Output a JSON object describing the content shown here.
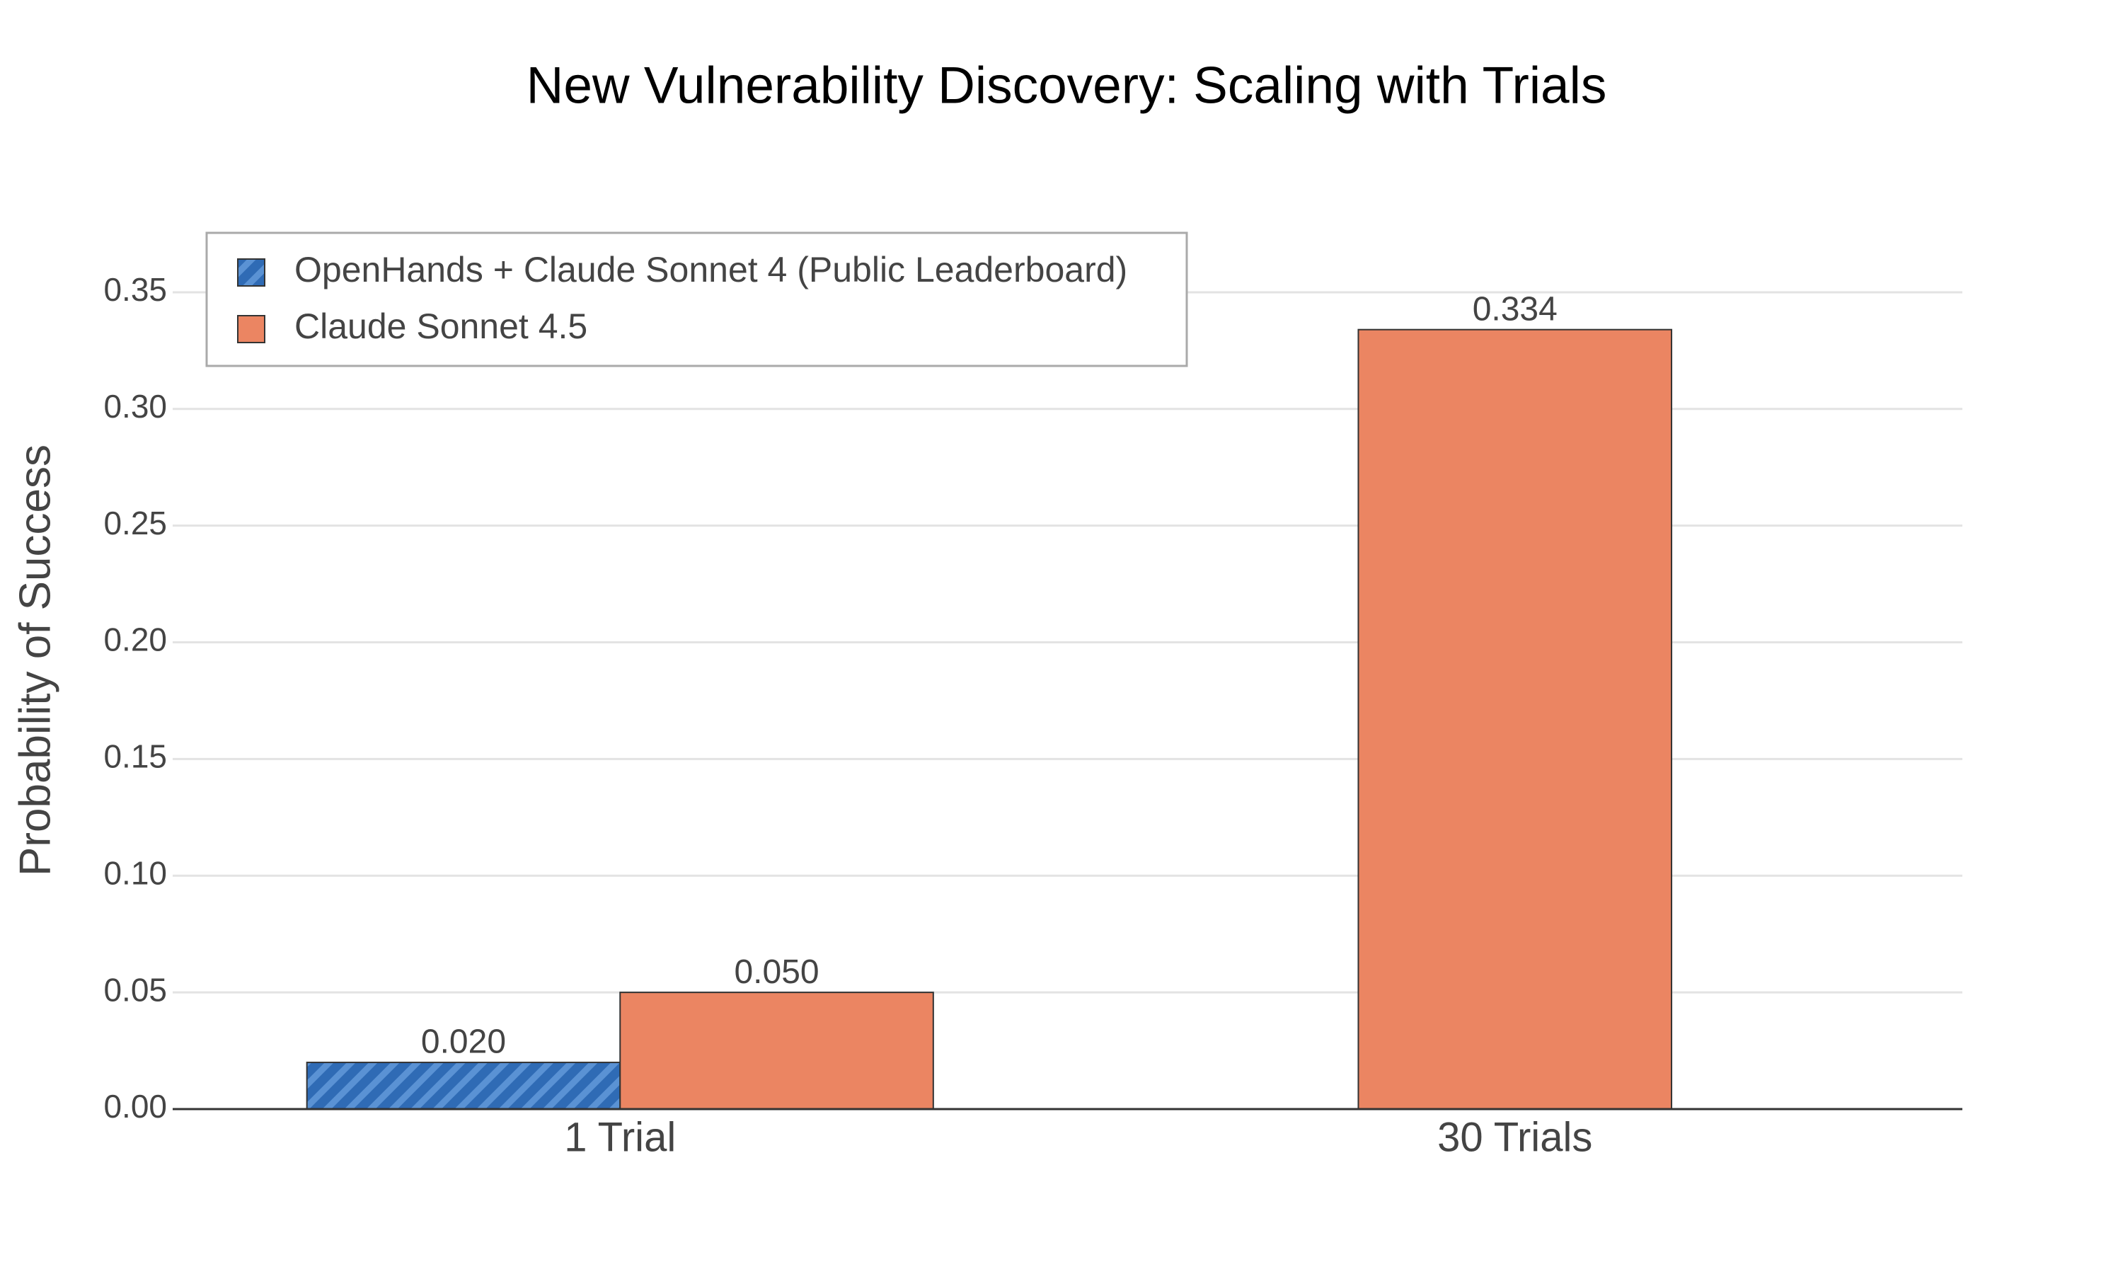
{
  "chart_data": {
    "type": "bar",
    "title": "New Vulnerability Discovery: Scaling with Trials",
    "y_label": "Probability of Success",
    "categories": [
      "1 Trial",
      "30 Trials"
    ],
    "series": [
      {
        "name": "OpenHands + Claude Sonnet 4 (Public Leaderboard)",
        "color": "#3a77c2",
        "hatch": true,
        "values": [
          0.02,
          null
        ],
        "value_labels": [
          "0.020",
          null
        ]
      },
      {
        "name": "Claude Sonnet 4.5",
        "color": "#eb8562",
        "hatch": false,
        "values": [
          0.05,
          0.334
        ],
        "value_labels": [
          "0.050",
          "0.334"
        ]
      }
    ],
    "ylim": [
      0,
      0.37
    ],
    "yticks": [
      {
        "value": 0,
        "label": "0.00"
      },
      {
        "value": 0.05,
        "label": "0.05"
      },
      {
        "value": 0.1,
        "label": "0.10"
      },
      {
        "value": 0.15,
        "label": "0.15"
      },
      {
        "value": 0.2,
        "label": "0.20"
      },
      {
        "value": 0.25,
        "label": "0.25"
      },
      {
        "value": 0.3,
        "label": "0.30"
      },
      {
        "value": 0.35,
        "label": "0.35"
      }
    ],
    "grid": true,
    "legend": "top-left"
  }
}
